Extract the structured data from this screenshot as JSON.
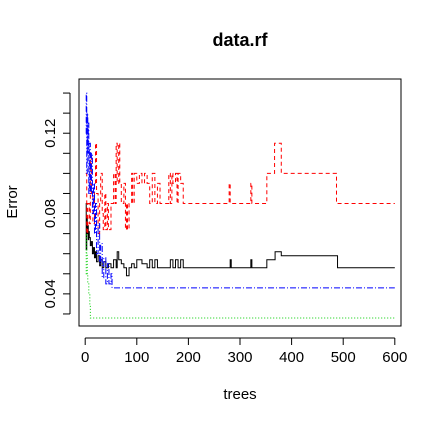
{
  "chart_data": {
    "type": "line",
    "title": "data.rf",
    "xlabel": "trees",
    "ylabel": "Error",
    "xlim": [
      -12,
      612
    ],
    "ylim": [
      0.024,
      0.147
    ],
    "xticks": [
      0,
      100,
      200,
      300,
      400,
      500,
      600
    ],
    "yticks": [
      0.04,
      0.08,
      0.12
    ],
    "xtick_labels": [
      "0",
      "100",
      "200",
      "300",
      "400",
      "500",
      "600"
    ],
    "ytick_labels": [
      "0.04",
      "0.08",
      "0.12"
    ],
    "grid": false,
    "legend": "none",
    "series": [
      {
        "color": "#000000",
        "dash": "",
        "points": [
          [
            1,
            0.085
          ],
          [
            2,
            0.062
          ],
          [
            3,
            0.078
          ],
          [
            4,
            0.07
          ],
          [
            5,
            0.074
          ],
          [
            6,
            0.067
          ],
          [
            7,
            0.071
          ],
          [
            8,
            0.068
          ],
          [
            10,
            0.064
          ],
          [
            12,
            0.066
          ],
          [
            14,
            0.06
          ],
          [
            16,
            0.063
          ],
          [
            18,
            0.058
          ],
          [
            20,
            0.061
          ],
          [
            22,
            0.056
          ],
          [
            25,
            0.059
          ],
          [
            28,
            0.054
          ],
          [
            30,
            0.057
          ],
          [
            33,
            0.053
          ],
          [
            36,
            0.056
          ],
          [
            40,
            0.053
          ],
          [
            45,
            0.055
          ],
          [
            50,
            0.053
          ],
          [
            55,
            0.057
          ],
          [
            60,
            0.053
          ],
          [
            62,
            0.061
          ],
          [
            65,
            0.057
          ],
          [
            70,
            0.055
          ],
          [
            75,
            0.053
          ],
          [
            80,
            0.049
          ],
          [
            85,
            0.053
          ],
          [
            90,
            0.055
          ],
          [
            95,
            0.053
          ],
          [
            100,
            0.057
          ],
          [
            110,
            0.055
          ],
          [
            120,
            0.053
          ],
          [
            125,
            0.057
          ],
          [
            130,
            0.053
          ],
          [
            135,
            0.057
          ],
          [
            140,
            0.053
          ],
          [
            160,
            0.053
          ],
          [
            165,
            0.057
          ],
          [
            170,
            0.053
          ],
          [
            175,
            0.057
          ],
          [
            180,
            0.053
          ],
          [
            185,
            0.057
          ],
          [
            190,
            0.053
          ],
          [
            280,
            0.053
          ],
          [
            281,
            0.057
          ],
          [
            283,
            0.053
          ],
          [
            320,
            0.053
          ],
          [
            321,
            0.057
          ],
          [
            323,
            0.053
          ],
          [
            350,
            0.053
          ],
          [
            352,
            0.057
          ],
          [
            366,
            0.057
          ],
          [
            368,
            0.061
          ],
          [
            378,
            0.061
          ],
          [
            380,
            0.059
          ],
          [
            487,
            0.059
          ],
          [
            489,
            0.053
          ],
          [
            600,
            0.053
          ]
        ]
      },
      {
        "color": "#ff0000",
        "dash": "4,3",
        "points": [
          [
            1,
            0.1
          ],
          [
            3,
            0.07
          ],
          [
            5,
            0.085
          ],
          [
            8,
            0.075
          ],
          [
            10,
            0.11
          ],
          [
            12,
            0.09
          ],
          [
            15,
            0.075
          ],
          [
            18,
            0.095
          ],
          [
            20,
            0.115
          ],
          [
            22,
            0.09
          ],
          [
            25,
            0.07
          ],
          [
            28,
            0.085
          ],
          [
            30,
            0.1
          ],
          [
            33,
            0.08
          ],
          [
            35,
            0.072
          ],
          [
            38,
            0.09
          ],
          [
            40,
            0.072
          ],
          [
            43,
            0.085
          ],
          [
            45,
            0.072
          ],
          [
            50,
            0.085
          ],
          [
            55,
            0.1
          ],
          [
            58,
            0.085
          ],
          [
            60,
            0.115
          ],
          [
            62,
            0.095
          ],
          [
            65,
            0.115
          ],
          [
            67,
            0.095
          ],
          [
            70,
            0.085
          ],
          [
            75,
            0.095
          ],
          [
            78,
            0.072
          ],
          [
            80,
            0.085
          ],
          [
            82,
            0.072
          ],
          [
            85,
            0.085
          ],
          [
            90,
            0.1
          ],
          [
            92,
            0.085
          ],
          [
            95,
            0.1
          ],
          [
            100,
            0.095
          ],
          [
            105,
            0.1
          ],
          [
            110,
            0.095
          ],
          [
            115,
            0.1
          ],
          [
            120,
            0.095
          ],
          [
            125,
            0.085
          ],
          [
            130,
            0.1
          ],
          [
            135,
            0.085
          ],
          [
            140,
            0.095
          ],
          [
            145,
            0.085
          ],
          [
            160,
            0.085
          ],
          [
            162,
            0.1
          ],
          [
            165,
            0.085
          ],
          [
            168,
            0.1
          ],
          [
            170,
            0.095
          ],
          [
            175,
            0.1
          ],
          [
            178,
            0.085
          ],
          [
            180,
            0.1
          ],
          [
            185,
            0.095
          ],
          [
            190,
            0.085
          ],
          [
            278,
            0.085
          ],
          [
            279,
            0.095
          ],
          [
            281,
            0.085
          ],
          [
            320,
            0.085
          ],
          [
            321,
            0.095
          ],
          [
            323,
            0.085
          ],
          [
            350,
            0.085
          ],
          [
            352,
            0.1
          ],
          [
            365,
            0.1
          ],
          [
            367,
            0.115
          ],
          [
            378,
            0.115
          ],
          [
            380,
            0.1
          ],
          [
            485,
            0.1
          ],
          [
            487,
            0.085
          ],
          [
            600,
            0.085
          ]
        ]
      },
      {
        "color": "#00cd00",
        "dash": "1,2",
        "points": [
          [
            1,
            0.05
          ],
          [
            2,
            0.07
          ],
          [
            3,
            0.06
          ],
          [
            4,
            0.05
          ],
          [
            5,
            0.045
          ],
          [
            7,
            0.04
          ],
          [
            9,
            0.035
          ],
          [
            10,
            0.028
          ],
          [
            600,
            0.028
          ]
        ]
      },
      {
        "color": "#0000ff",
        "dash": "6,2,1,2",
        "points": [
          [
            1,
            0.12
          ],
          [
            2,
            0.14
          ],
          [
            3,
            0.1
          ],
          [
            4,
            0.13
          ],
          [
            5,
            0.11
          ],
          [
            6,
            0.125
          ],
          [
            7,
            0.09
          ],
          [
            8,
            0.115
          ],
          [
            10,
            0.09
          ],
          [
            12,
            0.11
          ],
          [
            14,
            0.08
          ],
          [
            16,
            0.095
          ],
          [
            18,
            0.07
          ],
          [
            20,
            0.085
          ],
          [
            22,
            0.06
          ],
          [
            25,
            0.075
          ],
          [
            28,
            0.055
          ],
          [
            30,
            0.065
          ],
          [
            33,
            0.048
          ],
          [
            36,
            0.058
          ],
          [
            40,
            0.045
          ],
          [
            43,
            0.055
          ],
          [
            46,
            0.045
          ],
          [
            50,
            0.05
          ],
          [
            52,
            0.043
          ],
          [
            600,
            0.043
          ]
        ]
      }
    ]
  }
}
